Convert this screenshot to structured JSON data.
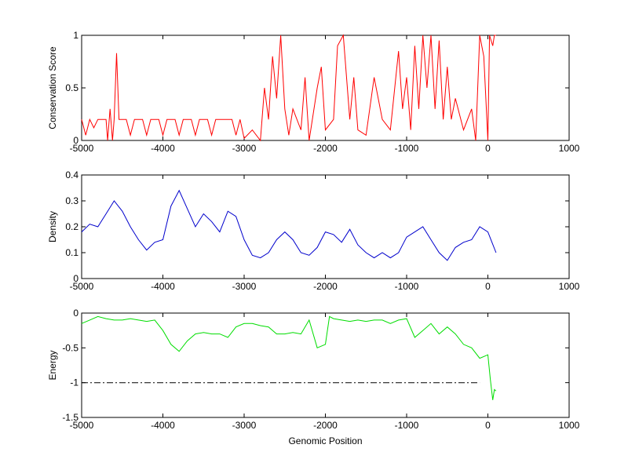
{
  "chart_data": [
    {
      "type": "line",
      "ylabel": "Conservation Score",
      "xlim": [
        -5000,
        1000
      ],
      "xticks": [
        -5000,
        -4000,
        -3000,
        -2000,
        -1000,
        0,
        1000
      ],
      "ylim": [
        0,
        1
      ],
      "yticks": [
        0,
        0.5,
        1
      ],
      "series": [
        {
          "color": "#ff0000",
          "x": [
            -5000,
            -4950,
            -4900,
            -4850,
            -4800,
            -4700,
            -4680,
            -4650,
            -4620,
            -4600,
            -4570,
            -4540,
            -4450,
            -4400,
            -4350,
            -4250,
            -4200,
            -4150,
            -4050,
            -4000,
            -3950,
            -3850,
            -3800,
            -3750,
            -3650,
            -3600,
            -3550,
            -3450,
            -3400,
            -3350,
            -3150,
            -3100,
            -3050,
            -3000,
            -2900,
            -2800,
            -2750,
            -2700,
            -2650,
            -2600,
            -2550,
            -2500,
            -2450,
            -2400,
            -2300,
            -2250,
            -2200,
            -2100,
            -2050,
            -2000,
            -1900,
            -1850,
            -1780,
            -1700,
            -1650,
            -1600,
            -1500,
            -1400,
            -1300,
            -1200,
            -1100,
            -1050,
            -1000,
            -950,
            -900,
            -850,
            -800,
            -750,
            -700,
            -650,
            -600,
            -550,
            -500,
            -450,
            -400,
            -300,
            -200,
            -150,
            -100,
            -50,
            0,
            20,
            60,
            80,
            100
          ],
          "values": [
            0.2,
            0.05,
            0.2,
            0.12,
            0.2,
            0.2,
            0.0,
            0.3,
            0.0,
            0.2,
            0.83,
            0.2,
            0.2,
            0.05,
            0.2,
            0.2,
            0.05,
            0.2,
            0.2,
            0.05,
            0.2,
            0.2,
            0.05,
            0.2,
            0.2,
            0.05,
            0.2,
            0.2,
            0.05,
            0.2,
            0.2,
            0.05,
            0.2,
            0.02,
            0.1,
            0.0,
            0.5,
            0.2,
            0.8,
            0.4,
            1.0,
            0.3,
            0.05,
            0.3,
            0.1,
            0.6,
            0.0,
            0.5,
            0.7,
            0.1,
            0.2,
            0.9,
            1.0,
            0.2,
            0.6,
            0.1,
            0.05,
            0.6,
            0.2,
            0.1,
            0.85,
            0.3,
            0.6,
            0.1,
            0.9,
            0.3,
            1.0,
            0.5,
            1.0,
            0.3,
            0.95,
            0.2,
            0.7,
            0.2,
            0.4,
            0.1,
            0.3,
            0.0,
            1.0,
            0.8,
            0.0,
            1.0,
            0.9,
            1.0,
            1.0
          ]
        }
      ]
    },
    {
      "type": "line",
      "ylabel": "Density",
      "xlim": [
        -5000,
        1000
      ],
      "xticks": [
        -5000,
        -4000,
        -3000,
        -2000,
        -1000,
        0,
        1000
      ],
      "ylim": [
        0,
        0.4
      ],
      "yticks": [
        0,
        0.1,
        0.2,
        0.3,
        0.4
      ],
      "series": [
        {
          "color": "#0000cc",
          "x": [
            -5000,
            -4900,
            -4800,
            -4700,
            -4600,
            -4500,
            -4400,
            -4300,
            -4200,
            -4100,
            -4000,
            -3900,
            -3800,
            -3700,
            -3600,
            -3500,
            -3400,
            -3300,
            -3200,
            -3100,
            -3000,
            -2900,
            -2800,
            -2700,
            -2600,
            -2500,
            -2400,
            -2300,
            -2200,
            -2100,
            -2000,
            -1900,
            -1800,
            -1700,
            -1600,
            -1500,
            -1400,
            -1300,
            -1200,
            -1100,
            -1000,
            -900,
            -800,
            -700,
            -600,
            -500,
            -400,
            -300,
            -200,
            -100,
            0,
            50,
            100
          ],
          "values": [
            0.18,
            0.21,
            0.2,
            0.25,
            0.3,
            0.26,
            0.2,
            0.15,
            0.11,
            0.14,
            0.15,
            0.28,
            0.34,
            0.27,
            0.2,
            0.25,
            0.22,
            0.18,
            0.26,
            0.24,
            0.15,
            0.09,
            0.08,
            0.1,
            0.15,
            0.18,
            0.15,
            0.1,
            0.09,
            0.12,
            0.18,
            0.17,
            0.14,
            0.19,
            0.13,
            0.1,
            0.08,
            0.1,
            0.08,
            0.1,
            0.16,
            0.18,
            0.2,
            0.15,
            0.1,
            0.07,
            0.12,
            0.14,
            0.15,
            0.2,
            0.18,
            0.14,
            0.1
          ]
        }
      ]
    },
    {
      "type": "line",
      "ylabel": "Energy",
      "xlabel": "Genomic Position",
      "xlim": [
        -5000,
        1000
      ],
      "xticks": [
        -5000,
        -4000,
        -3000,
        -2000,
        -1000,
        0,
        1000
      ],
      "ylim": [
        -1.5,
        0
      ],
      "yticks": [
        -1.5,
        -1,
        -0.5,
        0
      ],
      "series": [
        {
          "color": "#00dd00",
          "x": [
            -5000,
            -4900,
            -4800,
            -4700,
            -4600,
            -4500,
            -4400,
            -4300,
            -4200,
            -4100,
            -4000,
            -3900,
            -3800,
            -3700,
            -3600,
            -3500,
            -3400,
            -3300,
            -3200,
            -3100,
            -3000,
            -2900,
            -2800,
            -2700,
            -2600,
            -2500,
            -2400,
            -2300,
            -2200,
            -2100,
            -2000,
            -1950,
            -1900,
            -1800,
            -1700,
            -1600,
            -1500,
            -1400,
            -1300,
            -1200,
            -1100,
            -1000,
            -900,
            -800,
            -700,
            -600,
            -500,
            -400,
            -300,
            -200,
            -100,
            0,
            30,
            60,
            80,
            100
          ],
          "values": [
            -0.15,
            -0.1,
            -0.05,
            -0.08,
            -0.1,
            -0.1,
            -0.08,
            -0.1,
            -0.12,
            -0.1,
            -0.25,
            -0.45,
            -0.55,
            -0.4,
            -0.3,
            -0.28,
            -0.3,
            -0.3,
            -0.35,
            -0.2,
            -0.15,
            -0.15,
            -0.18,
            -0.2,
            -0.3,
            -0.3,
            -0.28,
            -0.3,
            -0.1,
            -0.5,
            -0.45,
            -0.05,
            -0.08,
            -0.1,
            -0.12,
            -0.1,
            -0.12,
            -0.1,
            -0.1,
            -0.15,
            -0.1,
            -0.08,
            -0.35,
            -0.25,
            -0.15,
            -0.3,
            -0.2,
            -0.3,
            -0.45,
            -0.5,
            -0.65,
            -0.6,
            -0.95,
            -1.25,
            -1.1,
            -1.12
          ]
        },
        {
          "color": "#000000",
          "style": "dash-dot",
          "x": [
            -5000,
            -100
          ],
          "values": [
            -1,
            -1
          ]
        }
      ]
    }
  ]
}
